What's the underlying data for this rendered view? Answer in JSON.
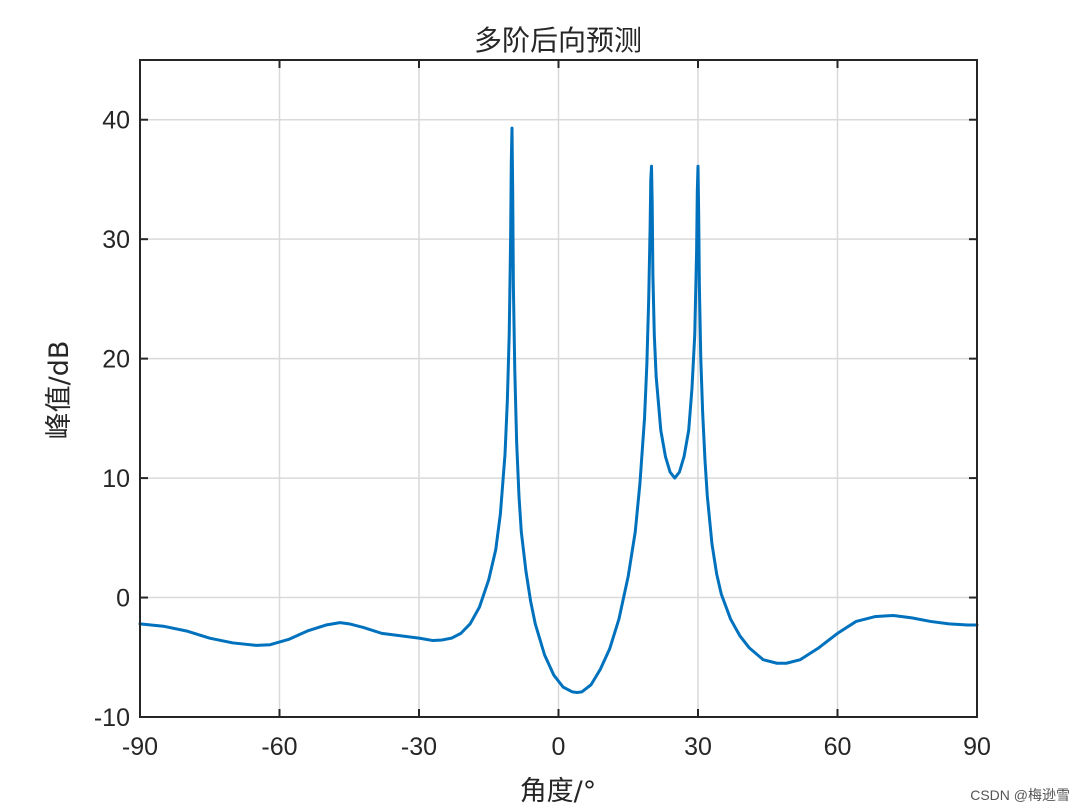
{
  "chart_data": {
    "type": "line",
    "title": "多阶后向预测",
    "xlabel": "角度/°",
    "ylabel": "峰值/dB",
    "xlim": [
      -90,
      90
    ],
    "ylim": [
      -10,
      45
    ],
    "xticks": [
      -90,
      -60,
      -30,
      0,
      30,
      60,
      90
    ],
    "yticks": [
      -10,
      0,
      10,
      20,
      30,
      40
    ],
    "grid": true,
    "series": [
      {
        "color": "#0072BD",
        "x": [
          -90,
          -85,
          -80,
          -75,
          -70,
          -65,
          -62,
          -58,
          -54,
          -50,
          -47,
          -45,
          -42,
          -38,
          -34,
          -30,
          -27,
          -25,
          -23,
          -21,
          -19,
          -17,
          -15,
          -13.5,
          -12.5,
          -11.5,
          -11,
          -10.6,
          -10.3,
          -10.15,
          -10,
          -9.85,
          -9.7,
          -9.4,
          -9,
          -8.5,
          -8,
          -7,
          -6,
          -5,
          -3,
          -1,
          1,
          3,
          4,
          5,
          7,
          9,
          11,
          13,
          15,
          16.5,
          17.5,
          18.5,
          19,
          19.4,
          19.7,
          19.85,
          20,
          20.15,
          20.3,
          20.6,
          21,
          22,
          23,
          24,
          25,
          26,
          27,
          28,
          28.7,
          29.3,
          29.7,
          29.85,
          30,
          30.15,
          30.3,
          30.6,
          31,
          31.5,
          32,
          33,
          34,
          35,
          37,
          39,
          41,
          44,
          47,
          49,
          52,
          56,
          60,
          64,
          68,
          72,
          76,
          80,
          84,
          88,
          90
        ],
        "y": [
          -2.2,
          -2.4,
          -2.8,
          -3.4,
          -3.8,
          -4.0,
          -3.95,
          -3.5,
          -2.8,
          -2.3,
          -2.1,
          -2.2,
          -2.5,
          -3.0,
          -3.2,
          -3.4,
          -3.6,
          -3.55,
          -3.4,
          -3.0,
          -2.2,
          -0.8,
          1.5,
          4.0,
          7.0,
          12.0,
          16.5,
          22.0,
          30.0,
          36.5,
          39.3,
          34.0,
          26.0,
          19.0,
          13.0,
          8.5,
          5.5,
          2.2,
          -0.3,
          -2.2,
          -4.8,
          -6.5,
          -7.5,
          -7.9,
          -7.95,
          -7.9,
          -7.3,
          -6.0,
          -4.3,
          -1.8,
          1.8,
          5.5,
          9.5,
          15.0,
          19.5,
          25.0,
          31.0,
          35.0,
          36.1,
          33.0,
          27.0,
          22.0,
          18.5,
          14.0,
          11.8,
          10.5,
          10.0,
          10.5,
          11.8,
          14.0,
          17.5,
          22.0,
          29.0,
          34.0,
          36.1,
          32.0,
          26.0,
          20.0,
          15.5,
          11.5,
          8.5,
          4.5,
          2.0,
          0.3,
          -1.8,
          -3.2,
          -4.2,
          -5.2,
          -5.5,
          -5.5,
          -5.2,
          -4.2,
          -3.0,
          -2.0,
          -1.6,
          -1.5,
          -1.7,
          -2.0,
          -2.2,
          -2.3,
          -2.3
        ]
      }
    ]
  },
  "watermark": "CSDN @梅逊雪"
}
